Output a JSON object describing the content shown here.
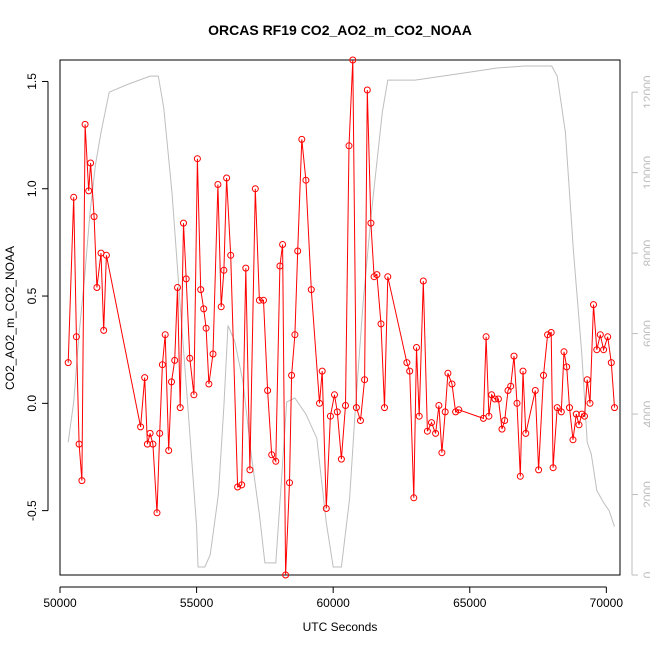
{
  "chart_data": {
    "type": "line",
    "title": "ORCAS RF19 CO2_AO2_m_CO2_NOAA",
    "xlabel": "UTC Seconds",
    "ylabel": "CO2_AO2_m_CO2_NOAA",
    "xlim": [
      50000,
      70500
    ],
    "ylim": [
      -0.8,
      1.6
    ],
    "y2lim": [
      0,
      12800
    ],
    "x_ticks": [
      50000,
      55000,
      60000,
      65000,
      70000
    ],
    "y_ticks": [
      -0.5,
      0.0,
      0.5,
      1.0,
      1.5
    ],
    "y2_ticks": [
      0,
      2000,
      4000,
      6000,
      8000,
      10000,
      12000
    ],
    "x_tick_labels": [
      "50000",
      "55000",
      "60000",
      "65000",
      "70000"
    ],
    "y_tick_labels": [
      "-0.5",
      "0.0",
      "0.5",
      "1.0",
      "1.5"
    ],
    "y2_tick_labels": [
      "0",
      "2000",
      "4000",
      "6000",
      "8000",
      "10000",
      "12000"
    ],
    "grid": false,
    "colors": {
      "co2": "#ff0000",
      "altitude": "#bebebe"
    },
    "series": [
      {
        "role": "CO2 difference",
        "axis": "left",
        "markers": "open-circle",
        "points": [
          [
            50300,
            0.19
          ],
          [
            50500,
            0.96
          ],
          [
            50600,
            0.31
          ],
          [
            50700,
            -0.19
          ],
          [
            50800,
            -0.36
          ],
          [
            50920,
            1.3
          ],
          [
            51050,
            0.99
          ],
          [
            51120,
            1.12
          ],
          [
            51250,
            0.87
          ],
          [
            51350,
            0.54
          ],
          [
            51500,
            0.7
          ],
          [
            51600,
            0.34
          ],
          [
            51700,
            0.69
          ],
          [
            52950,
            -0.11
          ],
          [
            53100,
            0.12
          ],
          [
            53200,
            -0.19
          ],
          [
            53300,
            -0.14
          ],
          [
            53400,
            -0.19
          ],
          [
            53550,
            -0.51
          ],
          [
            53650,
            -0.14
          ],
          [
            53750,
            0.18
          ],
          [
            53850,
            0.32
          ],
          [
            53980,
            -0.22
          ],
          [
            54080,
            0.1
          ],
          [
            54200,
            0.2
          ],
          [
            54300,
            0.54
          ],
          [
            54400,
            -0.02
          ],
          [
            54520,
            0.84
          ],
          [
            54620,
            0.58
          ],
          [
            54750,
            0.21
          ],
          [
            54900,
            0.04
          ],
          [
            55030,
            1.14
          ],
          [
            55150,
            0.53
          ],
          [
            55260,
            0.44
          ],
          [
            55350,
            0.35
          ],
          [
            55450,
            0.09
          ],
          [
            55600,
            0.23
          ],
          [
            55780,
            1.02
          ],
          [
            55900,
            0.45
          ],
          [
            56000,
            0.62
          ],
          [
            56100,
            1.05
          ],
          [
            56250,
            0.69
          ],
          [
            56500,
            -0.39
          ],
          [
            56650,
            -0.38
          ],
          [
            56800,
            0.63
          ],
          [
            56950,
            -0.31
          ],
          [
            57150,
            1.0
          ],
          [
            57300,
            0.48
          ],
          [
            57450,
            0.48
          ],
          [
            57600,
            0.06
          ],
          [
            57750,
            -0.24
          ],
          [
            57900,
            -0.27
          ],
          [
            58050,
            0.64
          ],
          [
            58150,
            0.74
          ],
          [
            58260,
            -0.8
          ],
          [
            58400,
            -0.37
          ],
          [
            58480,
            0.13
          ],
          [
            58600,
            0.32
          ],
          [
            58700,
            0.71
          ],
          [
            58850,
            1.23
          ],
          [
            59000,
            1.04
          ],
          [
            59200,
            0.53
          ],
          [
            59500,
            0.0
          ],
          [
            59600,
            0.15
          ],
          [
            59750,
            -0.49
          ],
          [
            59900,
            -0.06
          ],
          [
            60050,
            0.04
          ],
          [
            60150,
            -0.04
          ],
          [
            60300,
            -0.26
          ],
          [
            60450,
            -0.01
          ],
          [
            60580,
            1.2
          ],
          [
            60720,
            1.6
          ],
          [
            60850,
            -0.02
          ],
          [
            61000,
            -0.08
          ],
          [
            61150,
            0.11
          ],
          [
            61250,
            1.46
          ],
          [
            61380,
            0.84
          ],
          [
            61500,
            0.59
          ],
          [
            61600,
            0.6
          ],
          [
            61750,
            0.37
          ],
          [
            61880,
            -0.02
          ],
          [
            62000,
            0.59
          ],
          [
            62700,
            0.19
          ],
          [
            62800,
            0.15
          ],
          [
            62950,
            -0.44
          ],
          [
            63050,
            0.26
          ],
          [
            63150,
            -0.06
          ],
          [
            63300,
            0.57
          ],
          [
            63450,
            -0.13
          ],
          [
            63600,
            -0.09
          ],
          [
            63750,
            -0.14
          ],
          [
            63870,
            -0.01
          ],
          [
            63980,
            -0.23
          ],
          [
            64100,
            -0.04
          ],
          [
            64200,
            0.14
          ],
          [
            64350,
            0.09
          ],
          [
            64480,
            -0.04
          ],
          [
            64600,
            -0.03
          ],
          [
            65500,
            -0.07
          ],
          [
            65600,
            0.31
          ],
          [
            65700,
            -0.06
          ],
          [
            65800,
            0.04
          ],
          [
            65920,
            0.02
          ],
          [
            66050,
            0.02
          ],
          [
            66180,
            -0.12
          ],
          [
            66280,
            -0.08
          ],
          [
            66400,
            0.06
          ],
          [
            66500,
            0.08
          ],
          [
            66620,
            0.22
          ],
          [
            66730,
            0.0
          ],
          [
            66850,
            -0.34
          ],
          [
            66950,
            0.15
          ],
          [
            67050,
            -0.14
          ],
          [
            67400,
            0.06
          ],
          [
            67520,
            -0.31
          ],
          [
            67700,
            0.13
          ],
          [
            67850,
            0.32
          ],
          [
            67980,
            0.33
          ],
          [
            68050,
            -0.3
          ],
          [
            68200,
            -0.02
          ],
          [
            68350,
            -0.04
          ],
          [
            68450,
            0.24
          ],
          [
            68550,
            0.17
          ],
          [
            68650,
            -0.02
          ],
          [
            68780,
            -0.17
          ],
          [
            68900,
            -0.05
          ],
          [
            69000,
            -0.1
          ],
          [
            69100,
            -0.05
          ],
          [
            69200,
            -0.06
          ],
          [
            69300,
            0.11
          ],
          [
            69400,
            0.0
          ],
          [
            69530,
            0.46
          ],
          [
            69650,
            0.25
          ],
          [
            69780,
            0.32
          ],
          [
            69900,
            0.25
          ],
          [
            70050,
            0.31
          ],
          [
            70180,
            0.19
          ],
          [
            70300,
            -0.02
          ]
        ]
      },
      {
        "role": "altitude",
        "axis": "right",
        "markers": "none",
        "points": [
          [
            50300,
            3300
          ],
          [
            50500,
            4300
          ],
          [
            50700,
            6000
          ],
          [
            50900,
            7400
          ],
          [
            51100,
            9000
          ],
          [
            51300,
            10200
          ],
          [
            51500,
            11000
          ],
          [
            51800,
            12000
          ],
          [
            52500,
            12200
          ],
          [
            53300,
            12400
          ],
          [
            53600,
            12400
          ],
          [
            53800,
            11600
          ],
          [
            54100,
            9500
          ],
          [
            54400,
            6700
          ],
          [
            54700,
            4000
          ],
          [
            55000,
            1200
          ],
          [
            55050,
            200
          ],
          [
            55300,
            200
          ],
          [
            55500,
            500
          ],
          [
            55800,
            2000
          ],
          [
            56000,
            4200
          ],
          [
            56150,
            6200
          ],
          [
            56400,
            5800
          ],
          [
            56700,
            4800
          ],
          [
            57000,
            3000
          ],
          [
            57300,
            1500
          ],
          [
            57500,
            300
          ],
          [
            57900,
            300
          ],
          [
            58100,
            2300
          ],
          [
            58300,
            4300
          ],
          [
            58600,
            4400
          ],
          [
            59000,
            4000
          ],
          [
            59400,
            3400
          ],
          [
            59750,
            1300
          ],
          [
            60000,
            200
          ],
          [
            60300,
            200
          ],
          [
            60600,
            1900
          ],
          [
            60800,
            4000
          ],
          [
            61100,
            6800
          ],
          [
            61400,
            9000
          ],
          [
            61800,
            11500
          ],
          [
            62000,
            12300
          ],
          [
            62500,
            12300
          ],
          [
            63000,
            12300
          ],
          [
            64000,
            12400
          ],
          [
            65000,
            12500
          ],
          [
            66000,
            12600
          ],
          [
            67000,
            12650
          ],
          [
            68000,
            12650
          ],
          [
            68200,
            12400
          ],
          [
            68500,
            11000
          ],
          [
            68800,
            8000
          ],
          [
            69100,
            5500
          ],
          [
            69300,
            3300
          ],
          [
            69450,
            3000
          ],
          [
            69650,
            2100
          ],
          [
            69900,
            1800
          ],
          [
            70100,
            1600
          ],
          [
            70300,
            1200
          ]
        ]
      }
    ]
  }
}
